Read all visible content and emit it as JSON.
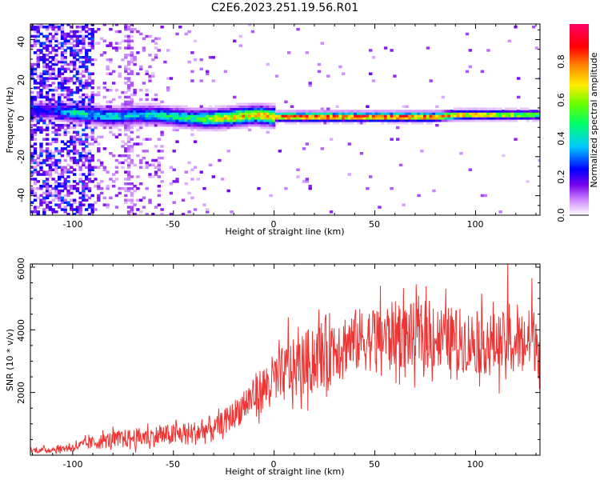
{
  "chart_data": [
    {
      "type": "heatmap",
      "title": "C2E6.2023.251.19.56.R01",
      "xlabel": "Height of straight line (km)",
      "ylabel": "Frequency (Hz)",
      "xlim": [
        -121,
        132
      ],
      "ylim": [
        -50,
        48
      ],
      "xticks": [
        "-100",
        "-50",
        "0",
        "50",
        "100"
      ],
      "yticks": [
        "-40",
        "-20",
        "0",
        "20",
        "40"
      ],
      "colorbar": {
        "label": "Normalized spectral amplitude",
        "range": [
          0,
          1
        ],
        "ticks": [
          "0.0",
          "0.2",
          "0.4",
          "0.6",
          "0.8"
        ],
        "colormap": [
          "#ffffff",
          "#cc88ff",
          "#7700ee",
          "#0000ff",
          "#00ccff",
          "#00ff66",
          "#66ff00",
          "#ffee00",
          "#ff8800",
          "#ff0000",
          "#ff0066"
        ]
      },
      "ridge": {
        "description_values": "dominant frequency band centered near 0 Hz",
        "x": [
          -110,
          -100,
          -90,
          -80,
          -70,
          -60,
          -50,
          -40,
          -30,
          -20,
          -10,
          0,
          10,
          20,
          40,
          60,
          80,
          90,
          100,
          110,
          120,
          130
        ],
        "freq_center": [
          3,
          2,
          1,
          0,
          1,
          1,
          0,
          -1,
          -1,
          0,
          1,
          0,
          0,
          0,
          0,
          0,
          0,
          1,
          1,
          1,
          1,
          1
        ],
        "amplitude": [
          0.3,
          0.5,
          0.45,
          0.45,
          0.45,
          0.5,
          0.5,
          0.55,
          0.7,
          0.75,
          0.8,
          0.85,
          0.95,
          0.95,
          0.95,
          0.95,
          0.9,
          0.85,
          0.8,
          0.75,
          0.7,
          0.6
        ]
      }
    },
    {
      "type": "line",
      "xlabel": "Height of straight line (km)",
      "ylabel": "SNR (10 * v/v)",
      "xlim": [
        -121,
        132
      ],
      "ylim": [
        0,
        6100
      ],
      "xticks": [
        "-100",
        "-50",
        "0",
        "50",
        "100"
      ],
      "yticks": [
        "2000",
        "4000",
        "6000"
      ],
      "color": "#ee3333",
      "trend": {
        "x": [
          -121,
          -110,
          -100,
          -90,
          -80,
          -70,
          -60,
          -50,
          -40,
          -30,
          -20,
          -10,
          0,
          10,
          20,
          30,
          40,
          50,
          60,
          70,
          80,
          90,
          100,
          110,
          120,
          132
        ],
        "y": [
          150,
          180,
          250,
          400,
          500,
          550,
          600,
          650,
          700,
          850,
          1300,
          1900,
          2400,
          2750,
          3100,
          3500,
          3650,
          3750,
          3850,
          3800,
          3750,
          3700,
          3600,
          3550,
          3600,
          3700
        ]
      },
      "peaks": [
        {
          "x": 7,
          "y": 4400
        },
        {
          "x": 116,
          "y": 6100
        },
        {
          "x": 128,
          "y": 5650
        }
      ]
    }
  ]
}
